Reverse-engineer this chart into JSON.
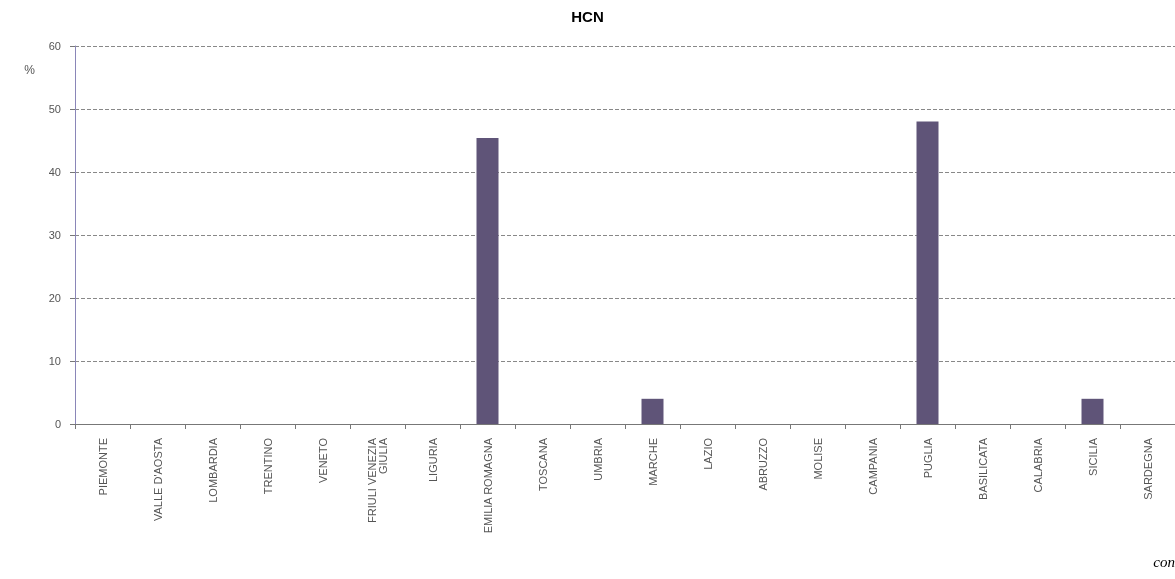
{
  "chart_data": {
    "type": "bar",
    "title": "HCN",
    "ylabel": "%",
    "categories": [
      "PIEMONTE",
      "VALLE D'AOSTA",
      "LOMBARDIA",
      "TRENTINO",
      "VENETO",
      "FRIULI VENEZIA\nGIULIA",
      "LIGURIA",
      "EMILIA ROMAGNA",
      "TOSCANA",
      "UMBRIA",
      "MARCHE",
      "LAZIO",
      "ABRUZZO",
      "MOLISE",
      "CAMPANIA",
      "PUGLIA",
      "BASILICATA",
      "CALABRIA",
      "SICILIA",
      "SARDEGNA"
    ],
    "values": [
      0,
      0,
      0,
      0,
      0,
      0,
      0,
      45.4,
      0,
      0,
      4,
      0,
      0,
      0,
      0,
      48,
      0,
      0,
      4,
      0
    ],
    "color": "#5f5478",
    "ylim": [
      0,
      60
    ],
    "yticks": [
      0,
      10,
      20,
      30,
      40,
      50,
      60
    ],
    "grid": "y",
    "annotations": [
      "con"
    ]
  }
}
